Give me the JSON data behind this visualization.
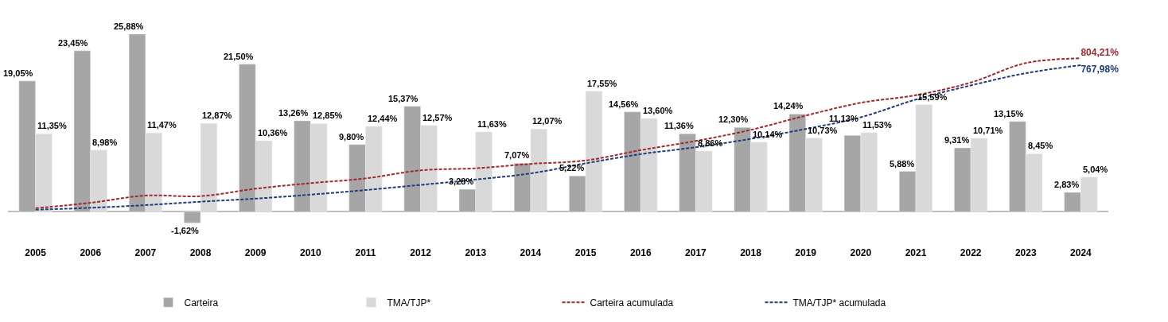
{
  "chart_data": {
    "type": "bar",
    "categories": [
      "2005",
      "2006",
      "2007",
      "2008",
      "2009",
      "2010",
      "2011",
      "2012",
      "2013",
      "2014",
      "2015",
      "2016",
      "2017",
      "2018",
      "2019",
      "2020",
      "2021",
      "2022",
      "2023",
      "2024"
    ],
    "series": [
      {
        "name": "Carteira",
        "color": "#a6a6a6",
        "values": [
          19.05,
          23.45,
          25.88,
          -1.62,
          21.5,
          13.26,
          9.8,
          15.37,
          3.28,
          7.07,
          5.22,
          14.56,
          11.36,
          12.3,
          14.24,
          11.13,
          5.88,
          9.31,
          13.15,
          2.83
        ],
        "value_labels": [
          "19,05%",
          "23,45%",
          "25,88%",
          "-1,62%",
          "21,50%",
          "13,26%",
          "9,80%",
          "15,37%",
          "3,28%",
          "7,07%",
          "5,22%",
          "14,56%",
          "11,36%",
          "12,30%",
          "14,24%",
          "11,13%",
          "5,88%",
          "9,31%",
          "13,15%",
          "2,83%"
        ]
      },
      {
        "name": "TMA/TJP*",
        "color": "#d9d9d9",
        "values": [
          11.35,
          8.98,
          11.47,
          12.87,
          10.36,
          12.85,
          12.44,
          12.57,
          11.63,
          12.07,
          17.55,
          13.6,
          8.86,
          10.14,
          10.73,
          11.53,
          15.59,
          10.71,
          8.45,
          5.04
        ],
        "value_labels": [
          "11,35%",
          "8,98%",
          "11,47%",
          "12,87%",
          "10,36%",
          "12,85%",
          "12,44%",
          "12,57%",
          "11,63%",
          "12,07%",
          "17,55%",
          "13,60%",
          "8,86%",
          "10,14%",
          "10,73%",
          "11,53%",
          "15,59%",
          "10,71%",
          "8,45%",
          "5,04%"
        ]
      },
      {
        "name": "Carteira acumulada",
        "type": "line",
        "axis": "y2",
        "line_style": "dashed",
        "color": "#a0282e",
        "values": [
          19,
          47,
          85,
          82,
          121,
          150,
          175,
          217,
          228,
          251,
          269,
          323,
          371,
          429,
          504,
          571,
          611,
          677,
          779,
          804.21
        ],
        "value_labels": [
          null,
          null,
          null,
          null,
          null,
          null,
          null,
          null,
          null,
          null,
          null,
          null,
          null,
          null,
          null,
          null,
          null,
          null,
          null,
          "804,21%"
        ]
      },
      {
        "name": "TMA/TJP* acumulada",
        "type": "line",
        "axis": "y2",
        "line_style": "dashed",
        "color": "#1f3d7a",
        "values": [
          11,
          21,
          35,
          53,
          69,
          90,
          114,
          141,
          169,
          201,
          254,
          302,
          338,
          382,
          434,
          495,
          588,
          662,
          726,
          767.98
        ],
        "value_labels": [
          null,
          null,
          null,
          null,
          null,
          null,
          null,
          null,
          null,
          null,
          null,
          null,
          null,
          null,
          null,
          null,
          null,
          null,
          null,
          "767,98%"
        ]
      }
    ],
    "tick_labels": "x",
    "legend": "bottom"
  }
}
